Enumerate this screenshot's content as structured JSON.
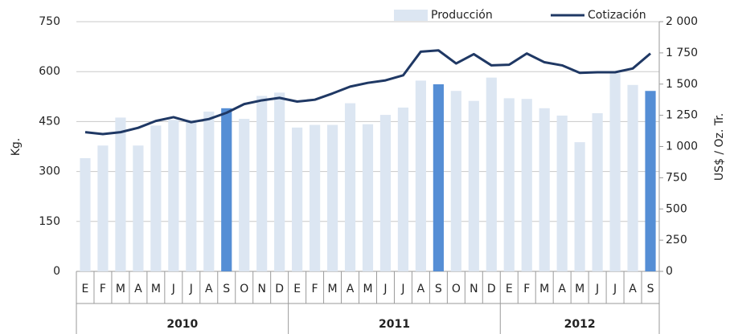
{
  "chart_data": {
    "type": "bar_line",
    "ylabel": "Kg.",
    "y2label": "US$ / Oz. Tr.",
    "category_groups": [
      {
        "label": "2010",
        "categories": [
          "E",
          "F",
          "M",
          "A",
          "M",
          "J",
          "J",
          "A",
          "S",
          "O",
          "N",
          "D"
        ]
      },
      {
        "label": "2011",
        "categories": [
          "E",
          "F",
          "M",
          "A",
          "M",
          "J",
          "J",
          "A",
          "S",
          "O",
          "N",
          "D"
        ]
      },
      {
        "label": "2012",
        "categories": [
          "E",
          "F",
          "M",
          "A",
          "M",
          "J",
          "J",
          "A",
          "S"
        ]
      }
    ],
    "series": [
      {
        "name": "Producción",
        "type": "bar",
        "color": "#dce6f2",
        "colors": [
          "#dce6f2",
          "#dce6f2",
          "#dce6f2",
          "#dce6f2",
          "#dce6f2",
          "#dce6f2",
          "#dce6f2",
          "#dce6f2",
          "#558ed5",
          "#dce6f2",
          "#dce6f2",
          "#dce6f2",
          "#dce6f2",
          "#dce6f2",
          "#dce6f2",
          "#dce6f2",
          "#dce6f2",
          "#dce6f2",
          "#dce6f2",
          "#dce6f2",
          "#558ed5",
          "#dce6f2",
          "#dce6f2",
          "#dce6f2",
          "#dce6f2",
          "#dce6f2",
          "#dce6f2",
          "#dce6f2",
          "#dce6f2",
          "#dce6f2",
          "#dce6f2",
          "#dce6f2",
          "#558ed5"
        ],
        "values": [
          340,
          378,
          462,
          378,
          438,
          455,
          455,
          480,
          490,
          458,
          527,
          537,
          432,
          440,
          440,
          505,
          442,
          470,
          492,
          573,
          562,
          542,
          512,
          582,
          520,
          518,
          490,
          468,
          388,
          475,
          595,
          560,
          542
        ]
      },
      {
        "name": "Cotización",
        "type": "line",
        "axis": "y2",
        "color": "#1f3864",
        "values": [
          1115,
          1100,
          1115,
          1150,
          1205,
          1235,
          1195,
          1220,
          1270,
          1340,
          1370,
          1390,
          1360,
          1375,
          1425,
          1480,
          1510,
          1530,
          1570,
          1760,
          1770,
          1665,
          1740,
          1650,
          1655,
          1745,
          1675,
          1650,
          1590,
          1595,
          1595,
          1625,
          1745
        ]
      }
    ],
    "ylim": [
      0,
      750
    ],
    "yticks": [
      0,
      150,
      300,
      450,
      600,
      750
    ],
    "y2lim": [
      0,
      2000
    ],
    "y2ticks": [
      0,
      250,
      500,
      750,
      {
        "value": 1000,
        "label": "1 000"
      },
      {
        "value": 1250,
        "label": "1 250"
      },
      {
        "value": 1500,
        "label": "1 500"
      },
      {
        "value": 1750,
        "label": "1 750"
      },
      {
        "value": 2000,
        "label": "2 000"
      }
    ],
    "grid": true,
    "legend": "top"
  }
}
